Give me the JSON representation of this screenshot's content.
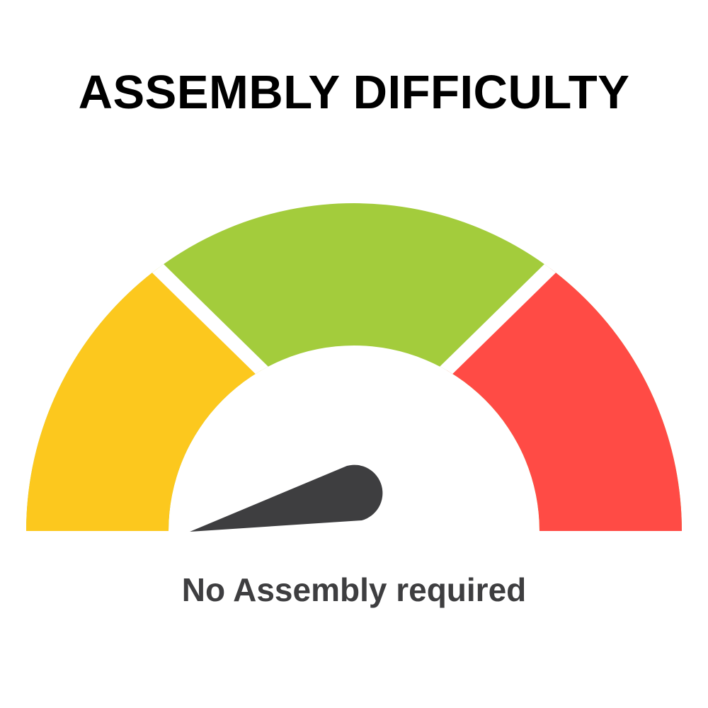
{
  "title": "ASSEMBLY DIFFICULTY",
  "caption": "No Assembly required",
  "gauge": {
    "segments": [
      {
        "color": "#FCC81E"
      },
      {
        "color": "#A3CC3C"
      },
      {
        "color": "#FF4B45"
      }
    ],
    "needle_color": "#3E3E40",
    "needle_position": "far left (lowest)"
  }
}
